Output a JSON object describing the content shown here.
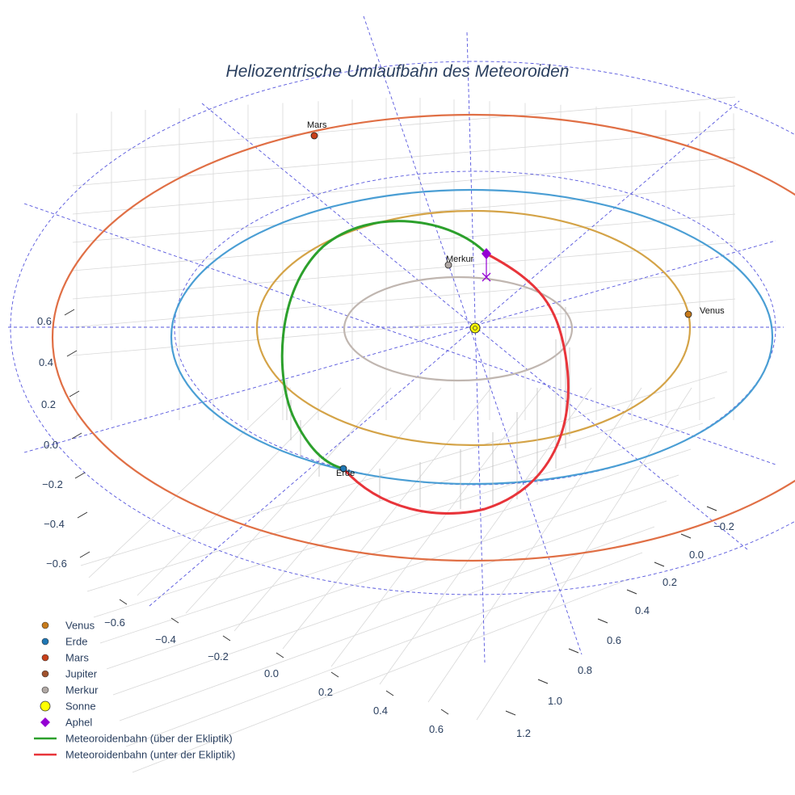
{
  "chart_data": {
    "type": "scatter3d",
    "title": "Heliozentrische Umlaufbahn des Meteoroiden",
    "axes": {
      "z_ticks": [
        "0.6",
        "0.4",
        "0.2",
        "0.0",
        "−0.2",
        "−0.4",
        "−0.6"
      ],
      "x_ticks": [
        "−0.6",
        "−0.4",
        "−0.2",
        "0.0",
        "0.2",
        "0.4",
        "0.6"
      ],
      "y_ticks": [
        "−0.2",
        "0.0",
        "0.2",
        "0.4",
        "0.6",
        "0.8",
        "1.0",
        "1.2"
      ],
      "grid": true
    },
    "orbits": [
      {
        "name": "Merkur",
        "color": "#c0b6b0"
      },
      {
        "name": "Venus",
        "color": "#d4a347"
      },
      {
        "name": "Erde",
        "color": "#4a9ed4"
      },
      {
        "name": "Mars",
        "color": "#e06f45"
      }
    ],
    "planets": [
      {
        "name": "Venus",
        "label": "Venus",
        "color": "#c77a1a"
      },
      {
        "name": "Erde",
        "label": "Erde",
        "color": "#1f77b4"
      },
      {
        "name": "Mars",
        "label": "Mars",
        "color": "#c8401a"
      },
      {
        "name": "Merkur",
        "label": "Merkur",
        "color": "#b0a8a4"
      },
      {
        "name": "Sonne",
        "color": "#ffff00"
      }
    ],
    "meteoroid_orbit": {
      "above_color": "#2ca02c",
      "below_color": "#e8343a"
    },
    "legend": [
      {
        "label": "Venus",
        "marker": "circle",
        "color": "#c77a1a"
      },
      {
        "label": "Erde",
        "marker": "circle",
        "color": "#1f77b4"
      },
      {
        "label": "Mars",
        "marker": "circle",
        "color": "#c8401a"
      },
      {
        "label": "Jupiter",
        "marker": "circle",
        "color": "#a0522d"
      },
      {
        "label": "Merkur",
        "marker": "circle",
        "color": "#b0a8a4"
      },
      {
        "label": "Sonne",
        "marker": "circle-large",
        "color": "#ffff00"
      },
      {
        "label": "Aphel",
        "marker": "diamond",
        "color": "#9400d3"
      },
      {
        "label": "Meteoroidenbahn (über der Ekliptik)",
        "marker": "line",
        "color": "#2ca02c"
      },
      {
        "label": "Meteoroidenbahn (unter der Ekliptik)",
        "marker": "line",
        "color": "#e8343a"
      }
    ]
  }
}
